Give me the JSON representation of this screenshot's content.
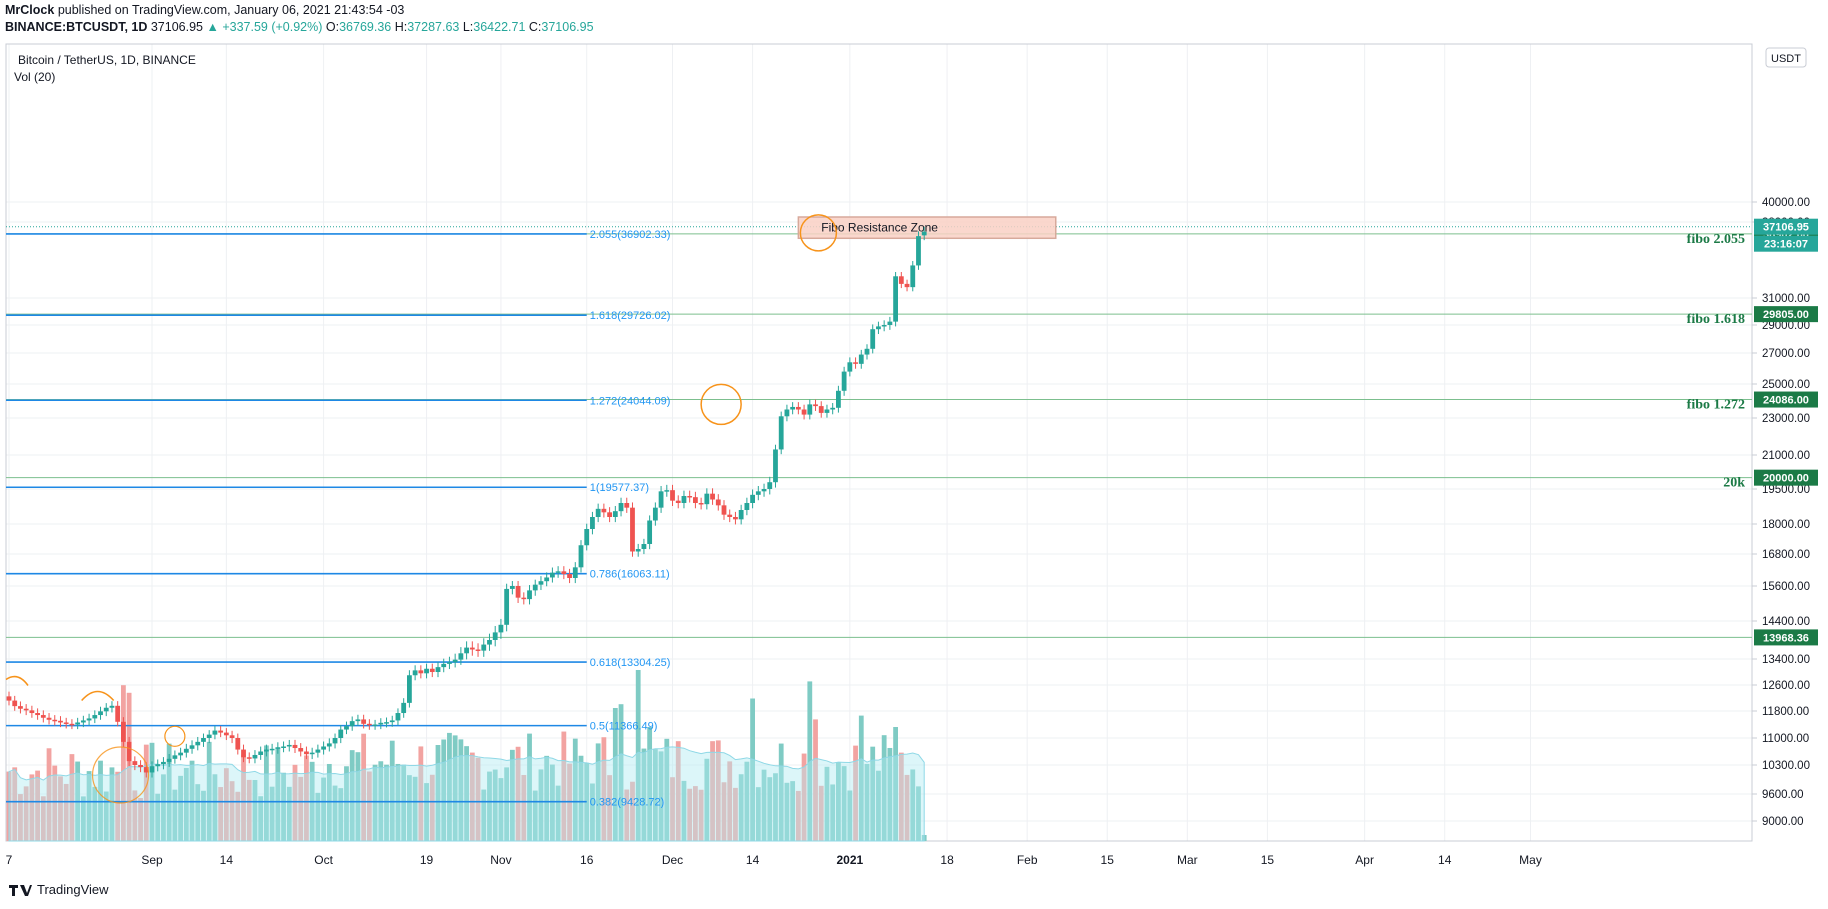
{
  "header": {
    "author": "MrClock",
    "published_text": "published on TradingView.com, January 06, 2021 21:43:54 -03",
    "symbol": "BINANCE:BTCUSDT, 1D",
    "last": "37106.95",
    "change": "▲ +337.59 (+0.92%)",
    "o_label": "O:",
    "o_value": "36769.36",
    "h_label": "H:",
    "h_value": "37287.63",
    "l_label": "L:",
    "l_value": "36422.71",
    "c_label": "C:",
    "c_value": "37106.95"
  },
  "pane": {
    "title": "Bitcoin / TetherUS, 1D, BINANCE",
    "volume_label": "Vol (20)",
    "currency": "USDT"
  },
  "footer": {
    "brand": "TradingView"
  },
  "colors": {
    "up": "#26a69a",
    "down": "#ef5350",
    "up_vol": "#7fcbc4",
    "down_vol": "#f2a3a1",
    "fib_line": "#1e88e5",
    "fib_text": "#2196f3",
    "green_label": "#1b7a46",
    "orange": "#f7931a",
    "zone_fill": "#f9d0c4",
    "zone_border": "#d7a99b",
    "vol_ma": "#b2ebf2"
  },
  "chart_data": {
    "type": "candlestick",
    "title": "Bitcoin / TetherUS, 1D, BINANCE",
    "y_ticks": [
      "40000.00",
      "38000.00",
      "31000.00",
      "29000.00",
      "27000.00",
      "25000.00",
      "23000.00",
      "21000.00",
      "19500.00",
      "18000.00",
      "16800.00",
      "15600.00",
      "14400.00",
      "13400.00",
      "12600.00",
      "11800.00",
      "11000.00",
      "10300.00",
      "9600.00",
      "9000.00"
    ],
    "x_ticks": [
      "7",
      "Sep",
      "14",
      "Oct",
      "19",
      "Nov",
      "16",
      "Dec",
      "14",
      "2021",
      "18",
      "Feb",
      "15",
      "Mar",
      "15",
      "Apr",
      "14",
      "May"
    ],
    "fib_levels": [
      {
        "label": "2.055(36902.33)",
        "price": 36902.33
      },
      {
        "label": "1.618(29726.02)",
        "price": 29726.02
      },
      {
        "label": "1.272(24044.09)",
        "price": 24044.09
      },
      {
        "label": "1(19577.37)",
        "price": 19577.37
      },
      {
        "label": "0.786(16063.11)",
        "price": 16063.11
      },
      {
        "label": "0.618(13304.25)",
        "price": 13304.25
      },
      {
        "label": "0.5(11366.49)",
        "price": 11366.49
      },
      {
        "label": "0.382(9428.72)",
        "price": 9428.72
      }
    ],
    "horizontal_levels": [
      {
        "name": "fibo 2.055",
        "price_label": "36902.00",
        "price": 36902
      },
      {
        "name": "fibo 1.618",
        "price_label": "29805.00",
        "price": 29805
      },
      {
        "name": "fibo 1.272",
        "price_label": "24086.00",
        "price": 24086
      },
      {
        "name": "20k",
        "price_label": "20000.00",
        "price": 20000
      },
      {
        "name": "",
        "price_label": "13968.36",
        "price": 13968.36
      }
    ],
    "last_price_label": "37106.95",
    "countdown_label": "23:16:07",
    "zone": {
      "label": "Fibo Resistance Zone",
      "price_low": 36500,
      "price_high": 38500
    },
    "close_series": [
      12120,
      11950,
      11870,
      11820,
      11740,
      11680,
      11600,
      11540,
      11510,
      11460,
      11420,
      11400,
      11460,
      11520,
      11580,
      11680,
      11790,
      11900,
      11960,
      11480,
      10900,
      10400,
      10300,
      10250,
      10120,
      10270,
      10320,
      10380,
      10460,
      10550,
      10620,
      10720,
      10810,
      10900,
      11000,
      11100,
      11220,
      11160,
      11080,
      11000,
      10700,
      10500,
      10470,
      10560,
      10650,
      10700,
      10720,
      10760,
      10780,
      10820,
      10740,
      10650,
      10580,
      10620,
      10700,
      10780,
      10860,
      11000,
      11250,
      11350,
      11500,
      11550,
      11420,
      11380,
      11400,
      11450,
      11470,
      11520,
      11740,
      12050,
      12900,
      13050,
      12960,
      13100,
      13000,
      13150,
      13250,
      13300,
      13380,
      13550,
      13700,
      13650,
      13620,
      13780,
      13900,
      14100,
      14300,
      15500,
      15600,
      15200,
      15150,
      15450,
      15650,
      15780,
      15920,
      16100,
      16150,
      16050,
      15900,
      16300,
      17150,
      17800,
      18300,
      18650,
      18500,
      18300,
      18550,
      18900,
      18700,
      16900,
      17000,
      17200,
      18150,
      18700,
      19400,
      19450,
      19000,
      18900,
      19200,
      19150,
      18900,
      18850,
      19300,
      19050,
      18800,
      18400,
      18300,
      18200,
      18600,
      18900,
      19250,
      19400,
      19500,
      19800,
      21300,
      23100,
      23500,
      23650,
      23500,
      23200,
      23800,
      23700,
      23300,
      23500,
      23600,
      24600,
      25800,
      26400,
      26300,
      26900,
      27300,
      28700,
      28900,
      29000,
      29250,
      33000,
      32300,
      32000,
      34000,
      36700,
      37107
    ],
    "open_series": [
      12250,
      12120,
      11950,
      11870,
      11820,
      11740,
      11680,
      11600,
      11540,
      11510,
      11460,
      11420,
      11400,
      11460,
      11520,
      11580,
      11680,
      11790,
      11900,
      11960,
      11480,
      10900,
      10400,
      10300,
      10250,
      10120,
      10270,
      10320,
      10380,
      10460,
      10550,
      10620,
      10720,
      10810,
      10900,
      11000,
      11100,
      11220,
      11160,
      11080,
      11000,
      10700,
      10500,
      10470,
      10560,
      10650,
      10700,
      10720,
      10760,
      10780,
      10820,
      10740,
      10650,
      10580,
      10620,
      10700,
      10780,
      10860,
      11000,
      11250,
      11350,
      11500,
      11550,
      11420,
      11380,
      11400,
      11450,
      11470,
      11520,
      11740,
      12050,
      12900,
      13050,
      12960,
      13100,
      13000,
      13150,
      13250,
      13300,
      13380,
      13550,
      13700,
      13650,
      13620,
      13780,
      13900,
      14100,
      14300,
      15500,
      15600,
      15200,
      15150,
      15450,
      15650,
      15780,
      15920,
      16100,
      16150,
      16050,
      15900,
      16300,
      17150,
      17800,
      18300,
      18650,
      18500,
      18300,
      18550,
      18900,
      18700,
      16900,
      17000,
      17200,
      18150,
      18700,
      19400,
      19450,
      19000,
      18900,
      19200,
      19150,
      18900,
      18850,
      19300,
      19050,
      18800,
      18400,
      18300,
      18200,
      18600,
      18900,
      19250,
      19400,
      19500,
      19800,
      21300,
      23100,
      23500,
      23650,
      23500,
      23200,
      23800,
      23700,
      23300,
      23500,
      23600,
      24600,
      25800,
      26400,
      26300,
      26900,
      27300,
      28700,
      28900,
      29000,
      29250,
      33000,
      32300,
      32000,
      34000,
      36769
    ]
  }
}
